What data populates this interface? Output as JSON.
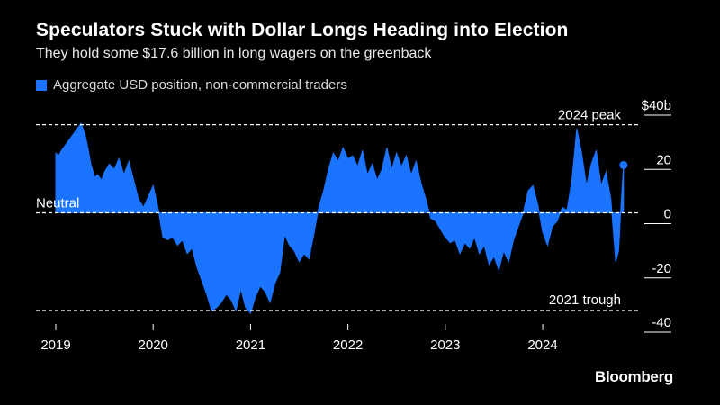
{
  "header": {
    "title": "Speculators Stuck with Dollar Longs Heading into Election",
    "subtitle": "They hold some $17.6 billion in long wagers on the greenback"
  },
  "source": "Bloomberg",
  "colors": {
    "series": "#1a74ff",
    "background": "#000000",
    "text": "#ffffff"
  },
  "chart_data": {
    "type": "area",
    "title": "Speculators Stuck with Dollar Longs Heading into Election",
    "subtitle": "They hold some $17.6 billion in long wagers on the greenback",
    "xlabel": "",
    "ylabel": "",
    "xlim": [
      2019.0,
      2024.85
    ],
    "ylim": [
      -40,
      40
    ],
    "y_ticks": [
      {
        "value": 40,
        "label": "$40b"
      },
      {
        "value": 20,
        "label": "20"
      },
      {
        "value": 0,
        "label": "0"
      },
      {
        "value": -20,
        "label": "-20"
      },
      {
        "value": -40,
        "label": "-40"
      }
    ],
    "x_ticks": [
      {
        "value": 2019,
        "label": "2019"
      },
      {
        "value": 2020,
        "label": "2020"
      },
      {
        "value": 2021,
        "label": "2021"
      },
      {
        "value": 2022,
        "label": "2022"
      },
      {
        "value": 2023,
        "label": "2023"
      },
      {
        "value": 2024,
        "label": "2024"
      }
    ],
    "grid": false,
    "legend": "top-left",
    "reference_lines": [
      {
        "value": 32.5,
        "label": "2024 peak"
      },
      {
        "value": 0,
        "label": "Neutral"
      },
      {
        "value": -36,
        "label": "2021 trough"
      }
    ],
    "end_marker": {
      "x": 2024.83,
      "y": 17.6
    },
    "series": [
      {
        "name": "Aggregate USD position, non-commercial traders",
        "x": [
          2019.0,
          2019.03,
          2019.06,
          2019.1,
          2019.14,
          2019.18,
          2019.22,
          2019.26,
          2019.3,
          2019.33,
          2019.36,
          2019.4,
          2019.43,
          2019.47,
          2019.5,
          2019.55,
          2019.6,
          2019.65,
          2019.7,
          2019.75,
          2019.8,
          2019.85,
          2019.9,
          2019.95,
          2020.0,
          2020.05,
          2020.1,
          2020.15,
          2020.2,
          2020.25,
          2020.3,
          2020.35,
          2020.4,
          2020.45,
          2020.5,
          2020.55,
          2020.6,
          2020.65,
          2020.7,
          2020.75,
          2020.8,
          2020.85,
          2020.9,
          2020.95,
          2021.0,
          2021.05,
          2021.1,
          2021.15,
          2021.2,
          2021.25,
          2021.3,
          2021.35,
          2021.4,
          2021.45,
          2021.5,
          2021.55,
          2021.6,
          2021.65,
          2021.7,
          2021.75,
          2021.8,
          2021.85,
          2021.9,
          2021.95,
          2022.0,
          2022.05,
          2022.1,
          2022.15,
          2022.2,
          2022.25,
          2022.3,
          2022.35,
          2022.4,
          2022.45,
          2022.5,
          2022.55,
          2022.6,
          2022.65,
          2022.7,
          2022.75,
          2022.8,
          2022.85,
          2022.9,
          2022.95,
          2023.0,
          2023.05,
          2023.1,
          2023.15,
          2023.2,
          2023.25,
          2023.3,
          2023.35,
          2023.4,
          2023.45,
          2023.5,
          2023.55,
          2023.6,
          2023.65,
          2023.7,
          2023.75,
          2023.8,
          2023.85,
          2023.9,
          2023.95,
          2024.0,
          2024.05,
          2024.1,
          2024.15,
          2024.2,
          2024.25,
          2024.3,
          2024.35,
          2024.4,
          2024.45,
          2024.5,
          2024.55,
          2024.6,
          2024.65,
          2024.7,
          2024.75,
          2024.78,
          2024.8,
          2024.83
        ],
        "values": [
          22,
          21,
          23,
          25,
          27,
          29,
          31,
          33,
          29,
          24,
          18,
          13,
          14,
          12,
          15,
          18,
          16,
          20,
          14,
          19,
          12,
          5,
          2,
          6,
          10,
          2,
          -9,
          -10,
          -9,
          -12,
          -10,
          -15,
          -13,
          -20,
          -25,
          -30,
          -36,
          -35,
          -33,
          -30,
          -32,
          -36,
          -28,
          -35,
          -37,
          -31,
          -27,
          -29,
          -33,
          -26,
          -22,
          -8,
          -12,
          -14,
          -18,
          -15,
          -17,
          -8,
          2,
          8,
          16,
          22,
          19,
          24,
          20,
          21,
          17,
          23,
          14,
          18,
          12,
          16,
          24,
          16,
          22,
          17,
          21,
          14,
          19,
          11,
          5,
          -2,
          -3,
          -6,
          -9,
          -11,
          -10,
          -15,
          -11,
          -13,
          -9,
          -15,
          -12,
          -19,
          -16,
          -21,
          -14,
          -18,
          -10,
          -5,
          0,
          8,
          10,
          3,
          -7,
          -12,
          -5,
          -3,
          2,
          1,
          12,
          31,
          22,
          10,
          18,
          23,
          10,
          15,
          5,
          -18,
          -14,
          0,
          17.6
        ]
      }
    ]
  }
}
